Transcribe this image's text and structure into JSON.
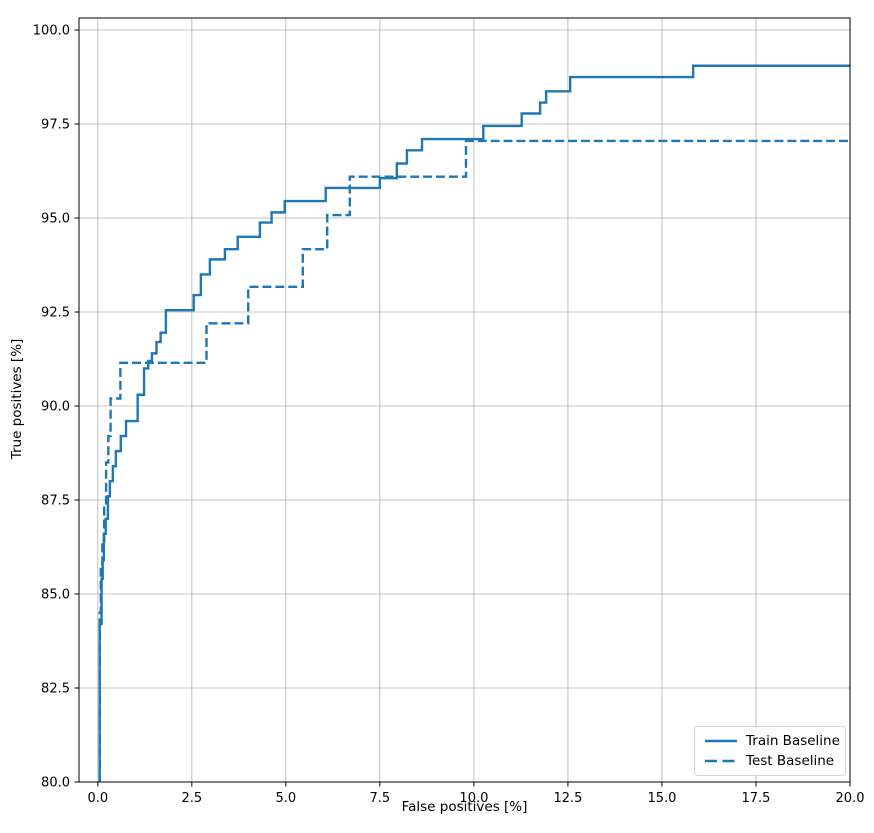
{
  "chart_data": {
    "type": "line",
    "subtype": "roc-step-curves",
    "title": "",
    "xlabel": "False positives [%]",
    "ylabel": "True positives [%]",
    "xlim": [
      -0.5,
      20.0
    ],
    "ylim": [
      80.0,
      100.32
    ],
    "x_ticks": [
      0.0,
      2.5,
      5.0,
      7.5,
      10.0,
      12.5,
      15.0,
      17.5,
      20.0
    ],
    "x_tick_labels": [
      "0.0",
      "2.5",
      "5.0",
      "7.5",
      "10.0",
      "12.5",
      "15.0",
      "17.5",
      "20.0"
    ],
    "y_ticks": [
      80.0,
      82.5,
      85.0,
      87.5,
      90.0,
      92.5,
      95.0,
      97.5,
      100.0
    ],
    "y_tick_labels": [
      "80.0",
      "82.5",
      "85.0",
      "87.5",
      "90.0",
      "92.5",
      "95.0",
      "97.5",
      "100.0"
    ],
    "grid": true,
    "grid_color": "#b0b0b0",
    "spine_color": "#000000",
    "legend_location": "lower right",
    "series": [
      {
        "name": "Train Baseline",
        "style": "solid",
        "color": "#1f77b4",
        "points": [
          [
            0.05,
            80.0
          ],
          [
            0.05,
            84.2
          ],
          [
            0.1,
            84.2
          ],
          [
            0.1,
            85.4
          ],
          [
            0.13,
            85.4
          ],
          [
            0.13,
            85.9
          ],
          [
            0.16,
            85.9
          ],
          [
            0.16,
            86.6
          ],
          [
            0.21,
            86.6
          ],
          [
            0.21,
            87.0
          ],
          [
            0.27,
            87.0
          ],
          [
            0.27,
            87.6
          ],
          [
            0.32,
            87.6
          ],
          [
            0.32,
            88.0
          ],
          [
            0.4,
            88.0
          ],
          [
            0.4,
            88.4
          ],
          [
            0.48,
            88.4
          ],
          [
            0.48,
            88.8
          ],
          [
            0.61,
            88.8
          ],
          [
            0.61,
            89.2
          ],
          [
            0.75,
            89.2
          ],
          [
            0.75,
            89.6
          ],
          [
            1.06,
            89.6
          ],
          [
            1.06,
            90.3
          ],
          [
            1.23,
            90.3
          ],
          [
            1.23,
            91.0
          ],
          [
            1.34,
            91.0
          ],
          [
            1.34,
            91.2
          ],
          [
            1.44,
            91.2
          ],
          [
            1.44,
            91.4
          ],
          [
            1.56,
            91.4
          ],
          [
            1.56,
            91.7
          ],
          [
            1.67,
            91.7
          ],
          [
            1.67,
            91.95
          ],
          [
            1.81,
            91.95
          ],
          [
            1.81,
            92.55
          ],
          [
            2.55,
            92.55
          ],
          [
            2.55,
            92.95
          ],
          [
            2.74,
            92.95
          ],
          [
            2.74,
            93.5
          ],
          [
            2.98,
            93.5
          ],
          [
            2.98,
            93.9
          ],
          [
            3.38,
            93.9
          ],
          [
            3.38,
            94.17
          ],
          [
            3.72,
            94.17
          ],
          [
            3.72,
            94.5
          ],
          [
            4.31,
            94.5
          ],
          [
            4.31,
            94.88
          ],
          [
            4.62,
            94.88
          ],
          [
            4.62,
            95.15
          ],
          [
            4.97,
            95.15
          ],
          [
            4.97,
            95.45
          ],
          [
            6.06,
            95.45
          ],
          [
            6.06,
            95.8
          ],
          [
            7.5,
            95.8
          ],
          [
            7.5,
            96.06
          ],
          [
            7.95,
            96.06
          ],
          [
            7.95,
            96.45
          ],
          [
            8.22,
            96.45
          ],
          [
            8.22,
            96.8
          ],
          [
            8.62,
            96.8
          ],
          [
            8.62,
            97.1
          ],
          [
            10.25,
            97.1
          ],
          [
            10.25,
            97.45
          ],
          [
            11.27,
            97.45
          ],
          [
            11.27,
            97.78
          ],
          [
            11.76,
            97.78
          ],
          [
            11.76,
            98.07
          ],
          [
            11.92,
            98.07
          ],
          [
            11.92,
            98.37
          ],
          [
            12.56,
            98.37
          ],
          [
            12.56,
            98.75
          ],
          [
            15.83,
            98.75
          ],
          [
            15.83,
            99.05
          ],
          [
            20.0,
            99.05
          ]
        ]
      },
      {
        "name": "Test Baseline",
        "style": "dashed",
        "color": "#1f77b4",
        "points": [
          [
            0.05,
            80.0
          ],
          [
            0.05,
            84.5
          ],
          [
            0.08,
            84.5
          ],
          [
            0.08,
            85.7
          ],
          [
            0.12,
            85.7
          ],
          [
            0.12,
            86.4
          ],
          [
            0.17,
            86.4
          ],
          [
            0.17,
            87.3
          ],
          [
            0.22,
            87.3
          ],
          [
            0.22,
            88.5
          ],
          [
            0.28,
            88.5
          ],
          [
            0.28,
            89.2
          ],
          [
            0.34,
            89.2
          ],
          [
            0.34,
            90.2
          ],
          [
            0.6,
            90.2
          ],
          [
            0.6,
            91.15
          ],
          [
            2.89,
            91.15
          ],
          [
            2.89,
            92.2
          ],
          [
            4.0,
            92.2
          ],
          [
            4.0,
            93.17
          ],
          [
            5.45,
            93.17
          ],
          [
            5.45,
            94.17
          ],
          [
            6.1,
            94.17
          ],
          [
            6.1,
            95.08
          ],
          [
            6.7,
            95.08
          ],
          [
            6.7,
            96.1
          ],
          [
            9.79,
            96.1
          ],
          [
            9.79,
            97.05
          ],
          [
            20.0,
            97.05
          ]
        ]
      }
    ]
  }
}
